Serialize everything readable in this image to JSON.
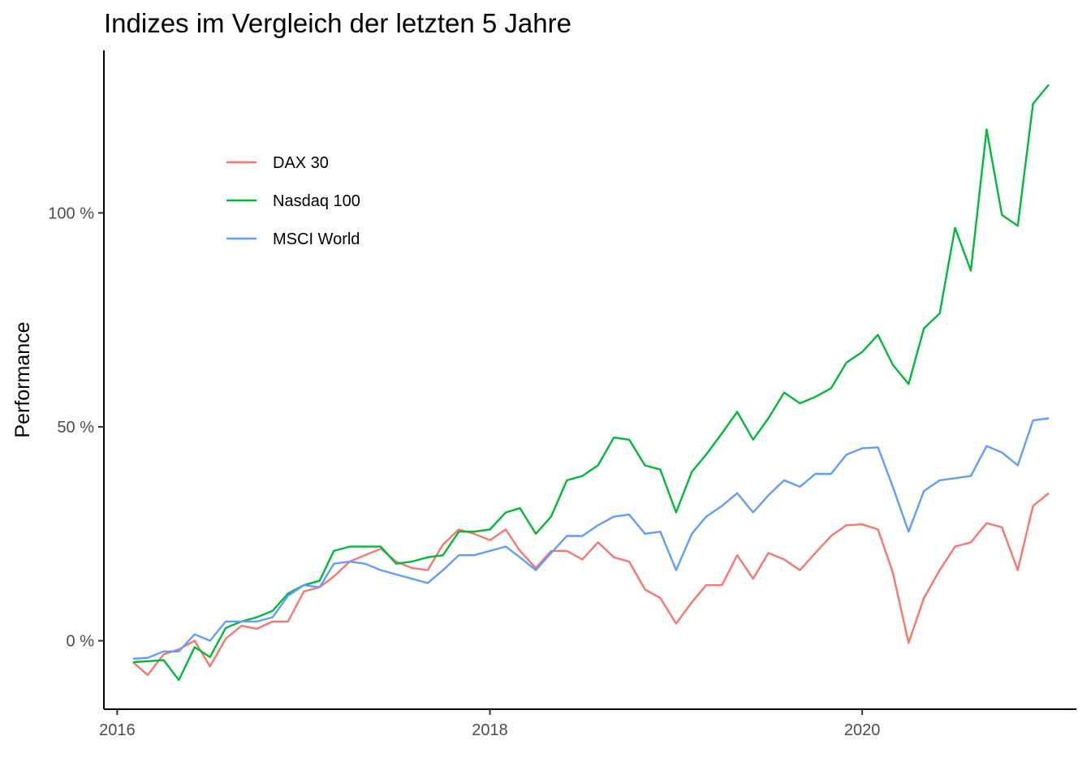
{
  "chart_data": {
    "type": "line",
    "title": "Indizes im Vergleich der letzten 5 Jahre",
    "xlabel": "",
    "ylabel": "Performance",
    "x_ticks": [
      {
        "value": "2016-01-01",
        "label": "2016"
      },
      {
        "value": "2018-01-01",
        "label": "2018"
      },
      {
        "value": "2020-01-01",
        "label": "2020"
      }
    ],
    "y_ticks": [
      {
        "value": 0,
        "label": "0 %"
      },
      {
        "value": 50,
        "label": "50 %"
      },
      {
        "value": 100,
        "label": "100 %"
      }
    ],
    "xlim": [
      "2015-12-06",
      "2021-02-24"
    ],
    "ylim": [
      -16,
      138
    ],
    "grid": false,
    "legend_position": "top-left (inside plot)",
    "x": [
      "2016-02-01",
      "2016-03-01",
      "2016-04-01",
      "2016-05-01",
      "2016-06-01",
      "2016-07-01",
      "2016-08-01",
      "2016-09-01",
      "2016-10-01",
      "2016-11-01",
      "2016-12-01",
      "2017-01-01",
      "2017-02-01",
      "2017-03-01",
      "2017-04-01",
      "2017-05-01",
      "2017-06-01",
      "2017-07-01",
      "2017-08-01",
      "2017-09-01",
      "2017-10-01",
      "2017-11-01",
      "2017-12-01",
      "2018-01-01",
      "2018-02-01",
      "2018-03-01",
      "2018-04-01",
      "2018-05-01",
      "2018-06-01",
      "2018-07-01",
      "2018-08-01",
      "2018-09-01",
      "2018-10-01",
      "2018-11-01",
      "2018-12-01",
      "2019-01-01",
      "2019-02-01",
      "2019-03-01",
      "2019-04-01",
      "2019-05-01",
      "2019-06-01",
      "2019-07-01",
      "2019-08-01",
      "2019-09-01",
      "2019-10-01",
      "2019-11-01",
      "2019-12-01",
      "2020-01-01",
      "2020-02-01",
      "2020-03-01",
      "2020-04-01",
      "2020-05-01",
      "2020-06-01",
      "2020-07-01",
      "2020-08-01",
      "2020-09-01",
      "2020-10-01",
      "2020-11-01",
      "2020-12-01",
      "2021-01-01"
    ],
    "series": [
      {
        "name": "DAX 30",
        "color": "#F8766D",
        "values": [
          -5,
          -8,
          -3.2,
          -2,
          0,
          -6,
          0.5,
          3.5,
          2.8,
          4.5,
          4.5,
          11.5,
          12.5,
          15,
          18.5,
          20,
          21.5,
          18.5,
          17,
          16.5,
          22.5,
          26,
          25,
          23.5,
          26,
          21,
          17,
          21,
          21,
          19,
          23,
          19.5,
          18.5,
          12,
          10,
          4,
          9,
          13,
          13,
          20,
          14.5,
          20.5,
          19,
          16.5,
          20.5,
          24.5,
          27,
          27.2,
          26,
          16,
          -0.5,
          10,
          16.5,
          22,
          23,
          27.5,
          26.5,
          16.5,
          31.5,
          34.5
        ]
      },
      {
        "name": "Nasdaq 100",
        "color": "#00BA38",
        "values": [
          -5,
          -4.8,
          -4.5,
          -9.2,
          -1.5,
          -3.8,
          3,
          4.5,
          5.5,
          7,
          11,
          13,
          14,
          21,
          22,
          22,
          22,
          18,
          18.5,
          19.5,
          20,
          25.5,
          25.5,
          26,
          30,
          31,
          25,
          29,
          37.5,
          38.5,
          41,
          47.5,
          47,
          41,
          40,
          30,
          39.5,
          43.5,
          48.5,
          53.5,
          47,
          52,
          58,
          55.5,
          57,
          59,
          65,
          67.5,
          71.5,
          64.5,
          60,
          73,
          76.5,
          96.5,
          86.5,
          119.5,
          99.5,
          97,
          125.5,
          130
        ]
      },
      {
        "name": "MSCI World",
        "color": "#619CFF",
        "values": [
          -4.2,
          -4,
          -2.5,
          -2.5,
          1.5,
          0,
          4.5,
          4.5,
          4.5,
          5.5,
          10.5,
          13,
          12.5,
          18,
          18.5,
          18,
          16.5,
          15.5,
          14.5,
          13.5,
          16.5,
          20,
          20,
          21,
          22,
          19.5,
          16.5,
          20.5,
          24.5,
          24.5,
          27,
          29,
          29.5,
          25,
          25.5,
          16.5,
          25,
          29,
          31.5,
          34.5,
          30,
          34,
          37.5,
          36,
          39,
          39,
          43.5,
          45,
          45.2,
          36,
          25.5,
          35,
          37.5,
          38,
          38.5,
          45.5,
          44,
          41,
          51.5,
          52
        ]
      }
    ]
  }
}
